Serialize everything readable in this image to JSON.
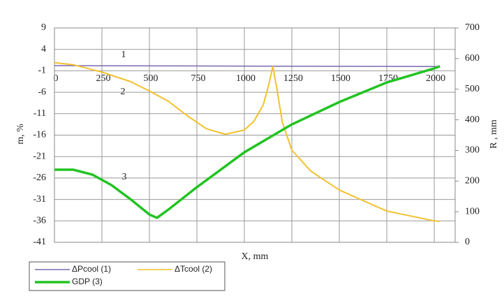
{
  "chart_data": {
    "type": "line",
    "x_label": "X, mm",
    "y_label": "m, %",
    "y2_label": "R , mm",
    "xlim": [
      0,
      2110
    ],
    "xticks": [
      0,
      250,
      500,
      750,
      1000,
      1250,
      1500,
      1750,
      2000
    ],
    "ylim": [
      -41,
      9
    ],
    "yticks": [
      9,
      4,
      -1,
      -6,
      -11,
      -16,
      -21,
      -26,
      -31,
      -36,
      -41
    ],
    "y2lim": [
      0,
      700
    ],
    "y2ticks": [
      0,
      100,
      200,
      300,
      400,
      500,
      600,
      700
    ],
    "grid": true,
    "annotations": [
      "1",
      "2",
      "3"
    ],
    "series": [
      {
        "name": "ΔPcool (1)",
        "color": "#7b68b0",
        "x": [
          0,
          2030
        ],
        "values": [
          0.2,
          0
        ]
      },
      {
        "name": "ΔTcool (2)",
        "color": "#f2c12e",
        "x": [
          0,
          100,
          250,
          400,
          500,
          600,
          700,
          800,
          900,
          1000,
          1050,
          1100,
          1130,
          1150,
          1170,
          1200,
          1250,
          1350,
          1500,
          1750,
          2000,
          2030
        ],
        "values": [
          0.9,
          0.4,
          -1.3,
          -3.5,
          -5.7,
          -8.1,
          -11.5,
          -14.5,
          -15.8,
          -14.8,
          -12.8,
          -8.9,
          -4,
          0,
          -4.8,
          -13,
          -19.5,
          -24.4,
          -28.8,
          -33.7,
          -36,
          -36.1
        ]
      },
      {
        "name": "GDP (3)",
        "color": "#22c322",
        "axis": "y2",
        "x": [
          0,
          100,
          200,
          300,
          400,
          500,
          540,
          600,
          750,
          1000,
          1250,
          1500,
          1750,
          2000,
          2030
        ],
        "values": [
          237,
          237,
          221,
          187,
          141,
          91,
          80,
          107,
          180,
          294,
          385,
          458,
          522,
          568,
          575
        ]
      }
    ]
  }
}
